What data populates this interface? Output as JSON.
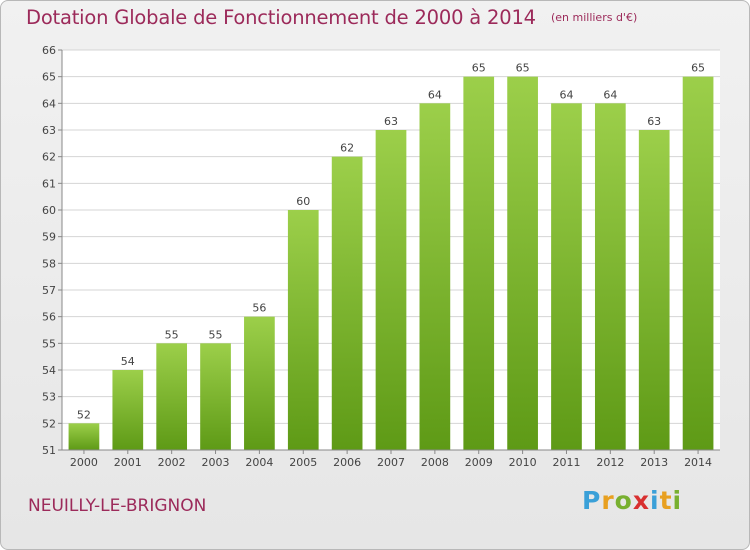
{
  "header": {
    "title": "Dotation Globale de Fonctionnement de 2000 à 2014",
    "unit": "(en milliers d'€)"
  },
  "footer": {
    "town": "NEUILLY-LE-BRIGNON",
    "logo": {
      "letters": [
        "P",
        "r",
        "o",
        "x",
        "i",
        "t",
        "i"
      ],
      "colors": [
        "#3aa0d8",
        "#e8a020",
        "#78b030",
        "#d83030",
        "#3aa0d8",
        "#e8a020",
        "#78b030"
      ]
    }
  },
  "colors": {
    "bar_light": "#9ccf4a",
    "bar_dark": "#5e9a16",
    "title": "#9c2a5a",
    "grid": "#d4d4d4",
    "axis_text": "#444444"
  },
  "chart_data": {
    "type": "bar",
    "title": "Dotation Globale de Fonctionnement de 2000 à 2014",
    "subtitle": "(en milliers d'€)",
    "categories": [
      "2000",
      "2001",
      "2002",
      "2003",
      "2004",
      "2005",
      "2006",
      "2007",
      "2008",
      "2009",
      "2010",
      "2011",
      "2012",
      "2013",
      "2014"
    ],
    "values": [
      52,
      54,
      55,
      55,
      56,
      60,
      62,
      63,
      64,
      65,
      65,
      64,
      64,
      63,
      65
    ],
    "ylim": [
      51,
      66
    ],
    "yticks": [
      51,
      52,
      53,
      54,
      55,
      56,
      57,
      58,
      59,
      60,
      61,
      62,
      63,
      64,
      65,
      66
    ],
    "grid": true,
    "data_labels": true,
    "legend": "none"
  }
}
